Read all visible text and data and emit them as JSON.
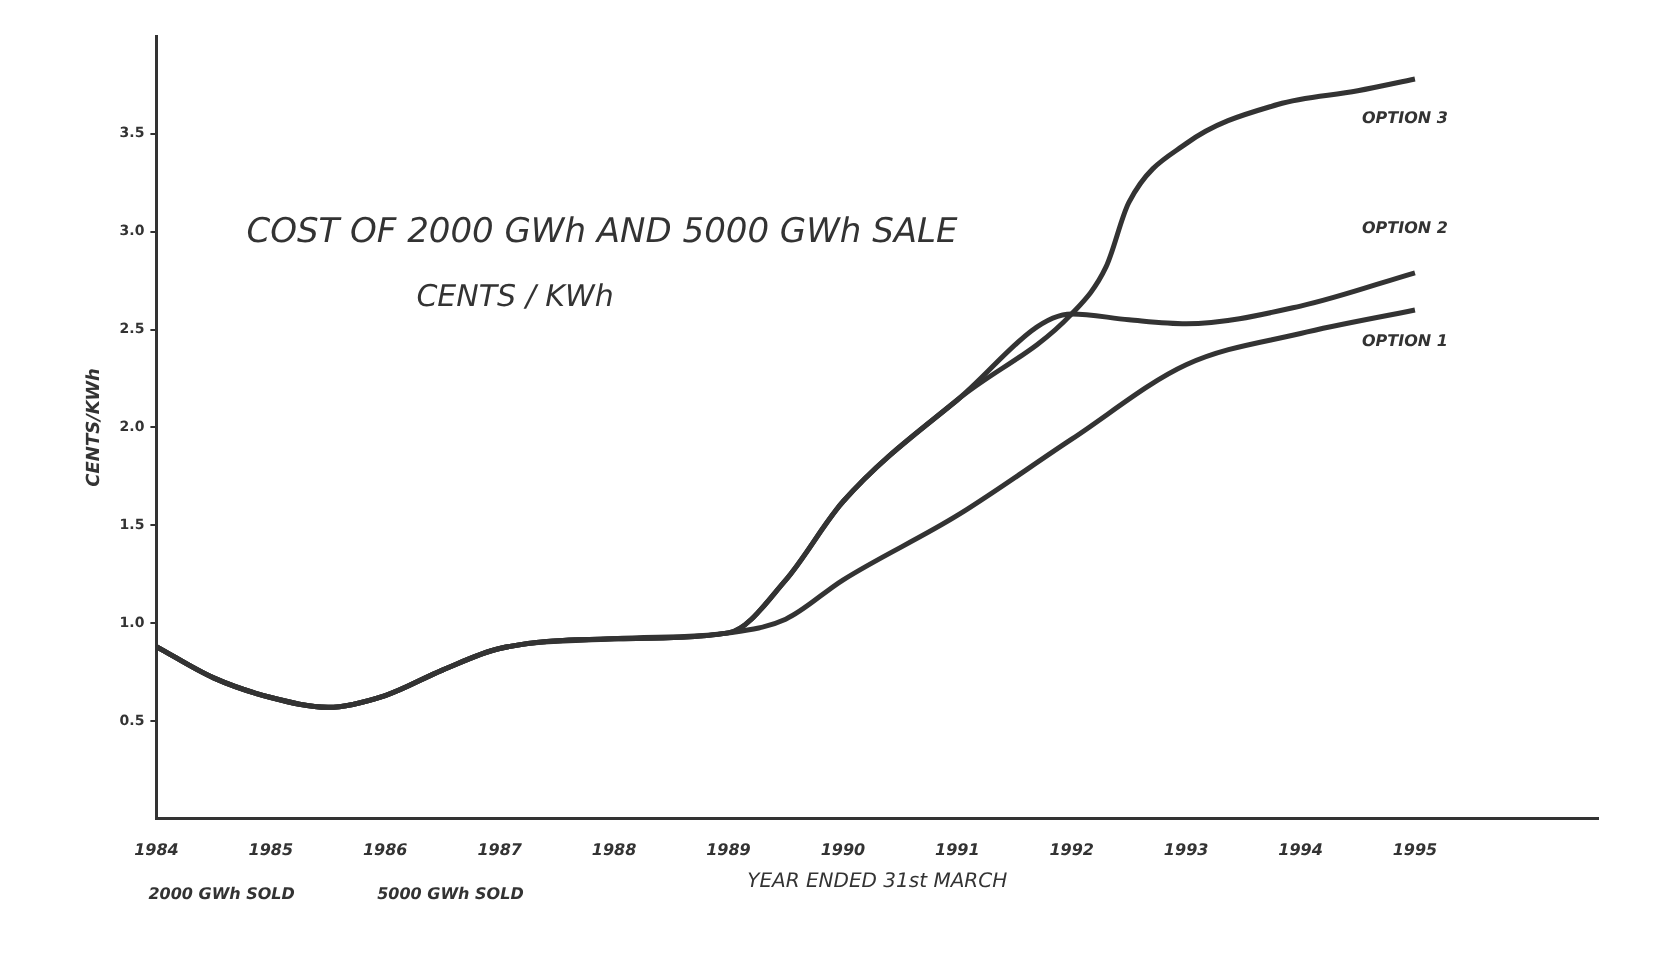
{
  "chart_data": {
    "type": "line",
    "title": "COST OF 2000 GWh AND 5000 GWh SALE",
    "subtitle": "CENTS / KWh",
    "xlabel": "YEAR ENDED 31st MARCH",
    "ylabel": "CENTS/KWh",
    "xlim": [
      1984,
      1996.6
    ],
    "xticks": [
      1984,
      1985,
      1986,
      1987,
      1988,
      1989,
      1990,
      1991,
      1992,
      1993,
      1994,
      1995
    ],
    "ylim": [
      0,
      4
    ],
    "yticks": [
      0.5,
      {
        "value": 1,
        "label": "1.0"
      },
      1.5,
      {
        "value": 2,
        "label": "2.0"
      },
      2.5,
      {
        "value": 3,
        "label": "3.0"
      },
      3.5
    ],
    "grid": false,
    "legend": false,
    "marker": "none",
    "line_style": "solid",
    "annotations": [
      "2000 GWh SOLD",
      "5000 GWh SOLD"
    ],
    "series": [
      {
        "name": "OPTION 1",
        "color": "#333333",
        "x": [
          1984,
          1984.5,
          1985,
          1985.5,
          1986,
          1986.5,
          1987,
          1988,
          1989,
          1989.5,
          1990,
          1991,
          1992,
          1993,
          1994,
          1995
        ],
        "values": [
          0.88,
          0.72,
          0.62,
          0.57,
          0.63,
          0.76,
          0.87,
          0.92,
          0.95,
          1.02,
          1.22,
          1.55,
          1.94,
          2.32,
          2.48,
          2.6
        ]
      },
      {
        "name": "OPTION 2",
        "color": "#333333",
        "x": [
          1984,
          1984.5,
          1985,
          1985.5,
          1986,
          1986.5,
          1987,
          1988,
          1989,
          1989.5,
          1990,
          1991,
          1992,
          1992.5,
          1993,
          1994,
          1995
        ],
        "values": [
          0.88,
          0.72,
          0.62,
          0.57,
          0.63,
          0.76,
          0.87,
          0.92,
          0.95,
          1.22,
          1.62,
          2.14,
          2.58,
          2.55,
          2.53,
          2.62,
          2.79
        ]
      },
      {
        "name": "OPTION 3",
        "color": "#333333",
        "x": [
          1984,
          1984.5,
          1985,
          1985.5,
          1986,
          1986.5,
          1987,
          1988,
          1989,
          1989.5,
          1990,
          1991,
          1992,
          1992.3,
          1992.5,
          1993,
          1993.8,
          1994.5,
          1995
        ],
        "values": [
          0.88,
          0.72,
          0.62,
          0.57,
          0.63,
          0.76,
          0.87,
          0.92,
          0.95,
          1.22,
          1.62,
          2.14,
          2.58,
          2.82,
          3.15,
          3.45,
          3.65,
          3.72,
          3.78
        ]
      }
    ]
  }
}
